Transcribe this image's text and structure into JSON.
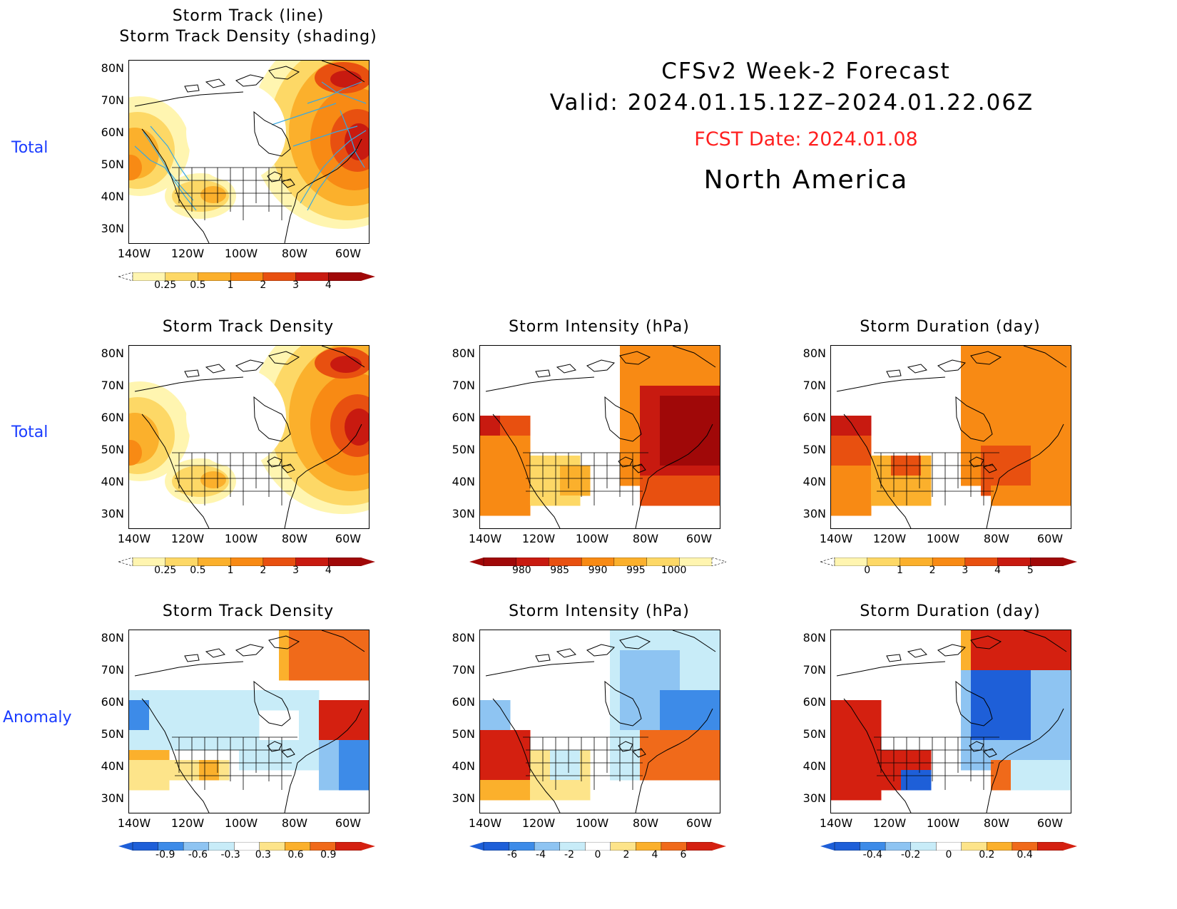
{
  "header": {
    "title": "CFSv2 Week-2 Forecast",
    "valid": "Valid: 2024.01.15.12Z–2024.01.22.06Z",
    "fcst_date": "FCST Date: 2024.01.08",
    "region": "North America"
  },
  "row_labels": [
    "Total",
    "Total",
    "Anomaly"
  ],
  "axis": {
    "lat_ticks": [
      "80N",
      "70N",
      "60N",
      "50N",
      "40N",
      "30N"
    ],
    "lon_ticks": [
      "140W",
      "120W",
      "100W",
      "80W",
      "60W"
    ]
  },
  "panels": [
    {
      "title": "Storm Track (line)\nStorm Track Density (shading)",
      "scheme": "density",
      "colorbar": [
        "0.25",
        "0.5",
        "1",
        "2",
        "3",
        "4"
      ],
      "field": "track_lines"
    },
    {
      "title": "Storm Track Density",
      "scheme": "density",
      "colorbar": [
        "0.25",
        "0.5",
        "1",
        "2",
        "3",
        "4"
      ],
      "field": "density"
    },
    {
      "title": "Storm Intensity (hPa)",
      "scheme": "intensity",
      "colorbar": [
        "980",
        "985",
        "990",
        "995",
        "1000"
      ],
      "field": "intensity"
    },
    {
      "title": "Storm Duration (day)",
      "scheme": "duration",
      "colorbar": [
        "0",
        "1",
        "2",
        "3",
        "4",
        "5"
      ],
      "field": "duration"
    },
    {
      "title": "Storm Track Density",
      "scheme": "anomaly",
      "colorbar": [
        "-0.9",
        "-0.6",
        "-0.3",
        "0.3",
        "0.6",
        "0.9"
      ],
      "field": "density_anom"
    },
    {
      "title": "Storm Intensity (hPa)",
      "scheme": "anomaly",
      "colorbar": [
        "-6",
        "-4",
        "-2",
        "0",
        "2",
        "4",
        "6"
      ],
      "field": "intensity_anom"
    },
    {
      "title": "Storm Duration (day)",
      "scheme": "anomaly",
      "colorbar": [
        "-0.4",
        "-0.2",
        "0",
        "0.2",
        "0.4"
      ],
      "field": "duration_anom"
    }
  ],
  "colors": {
    "density_scale": [
      "#fff5b0",
      "#fdd866",
      "#fbb02c",
      "#f88a14",
      "#e85010",
      "#c81a10",
      "#a00808"
    ],
    "intensity_scale": [
      "#a00808",
      "#c81a10",
      "#e85010",
      "#f88a14",
      "#fbb02c",
      "#fdd866",
      "#fff5b0"
    ],
    "anomaly_scale": [
      "#1e5fd8",
      "#3d8be8",
      "#8ec4f2",
      "#c8ecf8",
      "#ffffff",
      "#fde48a",
      "#fbb02c",
      "#f06a1a",
      "#d42010"
    ],
    "track_line": "#39a8e0",
    "row_label": "#1a3cff",
    "fcst_date": "#ff1f1f"
  }
}
